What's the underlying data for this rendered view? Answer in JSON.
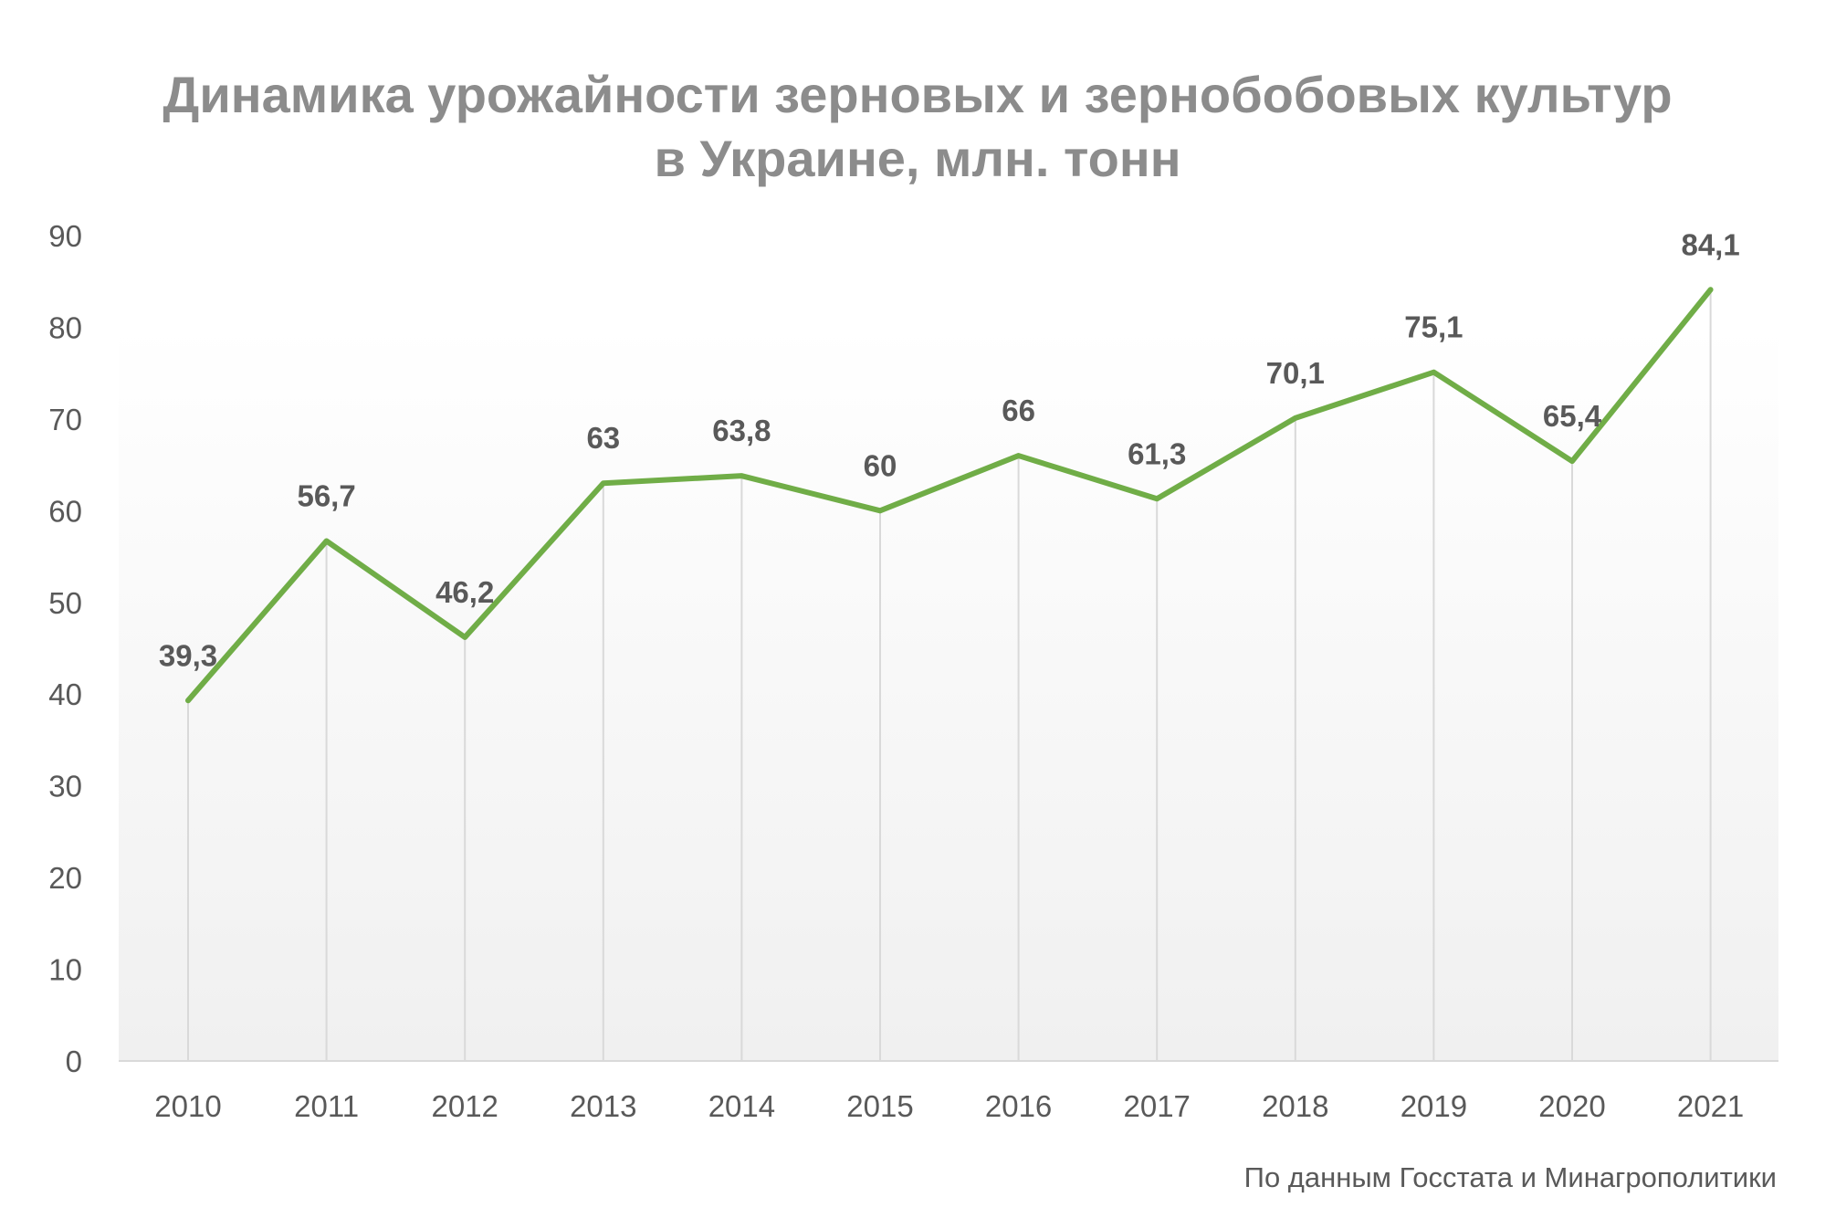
{
  "chart_data": {
    "type": "line",
    "title_lines": [
      "Динамика урожайности зерновых и зернобобовых культур",
      "в Украине, млн. тонн"
    ],
    "categories": [
      "2010",
      "2011",
      "2012",
      "2013",
      "2014",
      "2015",
      "2016",
      "2017",
      "2018",
      "2019",
      "2020",
      "2021"
    ],
    "series": [
      {
        "values": [
          39.3,
          56.7,
          46.2,
          63,
          63.8,
          60,
          66,
          61.3,
          70.1,
          75.1,
          65.4,
          84.1
        ],
        "data_labels": [
          "39,3",
          "56,7",
          "46,2",
          "63",
          "63,8",
          "60",
          "66",
          "61,3",
          "70,1",
          "75,1",
          "65,4",
          "84,1"
        ]
      }
    ],
    "y_ticks": [
      "0",
      "10",
      "20",
      "30",
      "40",
      "50",
      "60",
      "70",
      "80",
      "90"
    ],
    "ylim": [
      0,
      90
    ],
    "xlabel": "",
    "ylabel": "",
    "grid": "vertical",
    "legend": "none"
  },
  "source_note": "По данным Госстата и Минагрополитики",
  "colors": {
    "line": "#70ad47",
    "title": "#8c8c8c",
    "text": "#595959",
    "gridline": "#d9d9d9",
    "plot_gradient_top": "#ffffff",
    "plot_gradient_bottom": "#f0f0f0"
  }
}
